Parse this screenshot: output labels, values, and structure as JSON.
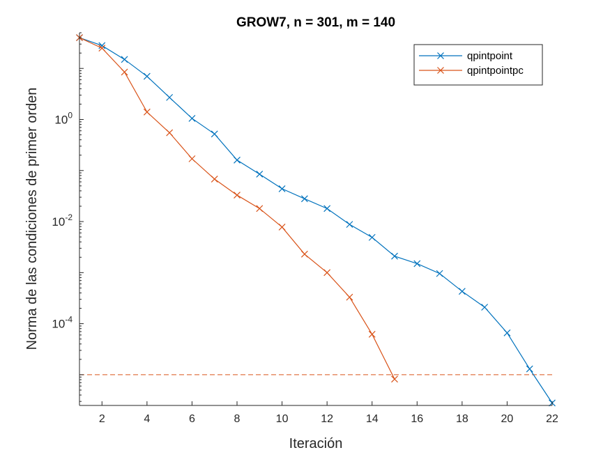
{
  "chart_data": {
    "type": "line",
    "title": "GROW7, n = 301, m = 140",
    "xlabel": "Iteración",
    "ylabel": "Norma de las condiciones de primer orden",
    "xlim": [
      1,
      22
    ],
    "ylim": [
      2.5e-06,
      50
    ],
    "yscale": "log",
    "xticks": [
      2,
      4,
      6,
      8,
      10,
      12,
      14,
      16,
      18,
      20,
      22
    ],
    "yticks": [
      {
        "value": 1,
        "base": "10",
        "exp": "0"
      },
      {
        "value": 0.01,
        "base": "10",
        "exp": "-2"
      },
      {
        "value": 0.0001,
        "base": "10",
        "exp": "-4"
      }
    ],
    "grid": false,
    "legend_position": "top-right",
    "threshold": {
      "value": 1e-05,
      "color": "#D95319",
      "style": "dashed"
    },
    "series": [
      {
        "name": "qpintpoint",
        "color": "#0072BD",
        "marker": "x",
        "x": [
          1,
          2,
          3,
          4,
          5,
          6,
          7,
          8,
          9,
          10,
          11,
          12,
          13,
          14,
          15,
          16,
          17,
          18,
          19,
          20,
          21,
          22
        ],
        "y": [
          40,
          28,
          15,
          7,
          2.7,
          1.05,
          0.52,
          0.16,
          0.085,
          0.044,
          0.028,
          0.018,
          0.0088,
          0.0049,
          0.0021,
          0.0015,
          0.00096,
          0.00043,
          0.00021,
          6.6e-05,
          1.3e-05,
          2.8e-06
        ]
      },
      {
        "name": "qpintpointpc",
        "color": "#D95319",
        "marker": "x",
        "x": [
          1,
          2,
          3,
          4,
          5,
          6,
          7,
          8,
          9,
          10,
          11,
          12,
          13,
          14,
          15
        ],
        "y": [
          40,
          25,
          8.5,
          1.4,
          0.55,
          0.17,
          0.068,
          0.033,
          0.018,
          0.0078,
          0.0023,
          0.001,
          0.00033,
          6.2e-05,
          8.2e-06
        ]
      }
    ]
  }
}
